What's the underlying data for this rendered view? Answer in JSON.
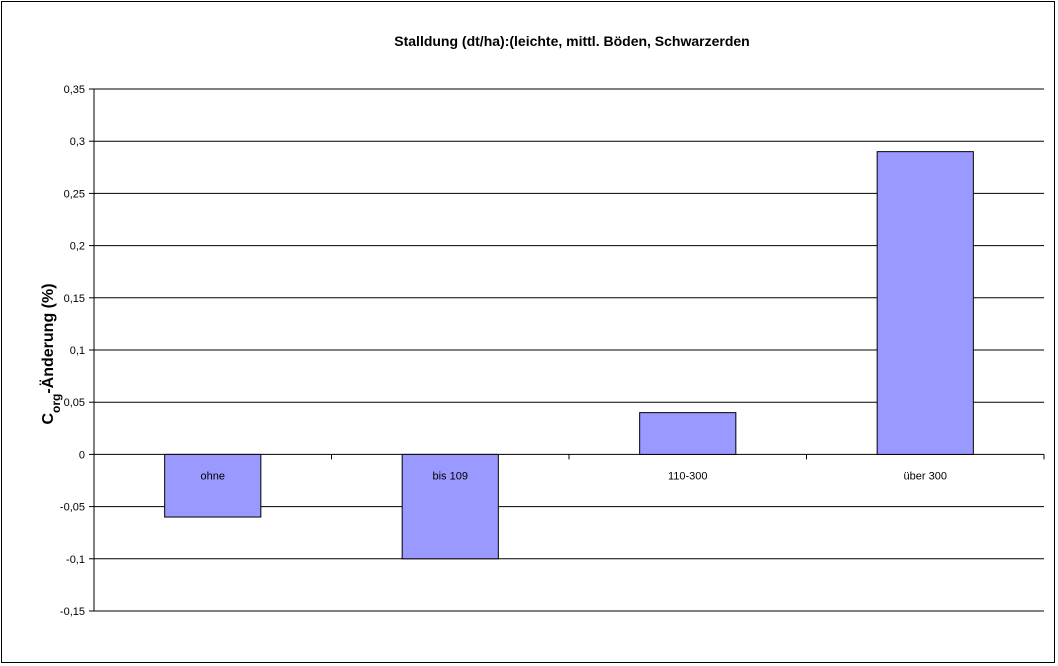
{
  "chart_data": {
    "type": "bar",
    "title": "Stalldung (dt/ha):(leichte, mittl. Böden, Schwarzerden",
    "xlabel": "",
    "ylabel": {
      "main": "C",
      "subscript": "org",
      "rest": "-Änderung (%)"
    },
    "categories": [
      "ohne",
      "bis 109",
      "110-300",
      "über 300"
    ],
    "values": [
      -0.06,
      -0.1,
      0.04,
      0.29
    ],
    "ylim": [
      -0.15,
      0.35
    ],
    "yticks": [
      -0.15,
      -0.1,
      -0.05,
      0,
      0.05,
      0.1,
      0.15,
      0.2,
      0.25,
      0.3,
      0.35
    ],
    "ytick_labels": [
      "-0,15",
      "-0,1",
      "-0,05",
      "0",
      "0,05",
      "0,1",
      "0,15",
      "0,2",
      "0,25",
      "0,3",
      "0,35"
    ],
    "grid": true,
    "legend": "none",
    "colors": {
      "bar_fill": "#9999ff",
      "bar_stroke": "#000000",
      "gridline": "#000000",
      "axis": "#000000"
    }
  }
}
